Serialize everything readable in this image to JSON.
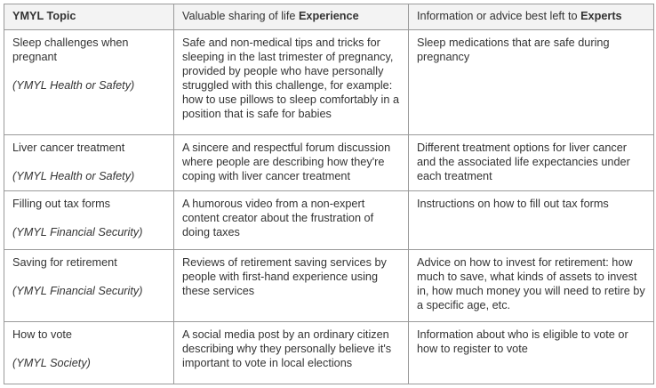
{
  "header": {
    "topic": "YMYL Topic",
    "experience_prefix": "Valuable sharing of life ",
    "experience_bold": "Experience",
    "experts_prefix": "Information or advice best left to ",
    "experts_bold": "Experts"
  },
  "rows": [
    {
      "topic": "Sleep challenges when pregnant",
      "category": "(YMYL Health or Safety)",
      "experience": "Safe and non-medical tips and tricks for sleeping in the last trimester of pregnancy, provided by people who have personally struggled with this challenge, for example: how to use pillows to sleep comfortably in a position that is safe for babies",
      "experts": "Sleep medications that are safe during pregnancy"
    },
    {
      "topic": "Liver cancer treatment",
      "category": "(YMYL Health or Safety)",
      "experience": "A sincere and respectful forum discussion where people are describing how they're coping with liver cancer treatment",
      "experts": "Different treatment options for liver cancer and the associated life expectancies under each treatment"
    },
    {
      "topic": "Filling out tax forms",
      "category": "(YMYL Financial Security)",
      "experience": "A humorous video from a non-expert content creator about the frustration of doing taxes",
      "experts": "Instructions on how to fill out tax forms"
    },
    {
      "topic": "Saving for retirement",
      "category": "(YMYL Financial Security)",
      "experience": "Reviews of retirement saving services by people with first-hand experience using these services",
      "experts": "Advice on how to invest for retirement: how much to save, what kinds of assets to invest in, how much money you will need to retire by a specific age, etc."
    },
    {
      "topic": "How to vote",
      "category": "(YMYL Society)",
      "experience": "A social media post by an ordinary citizen describing why they personally believe it's important to vote in local elections",
      "experts": "Information about who is eligible to vote or how to register to vote"
    }
  ]
}
